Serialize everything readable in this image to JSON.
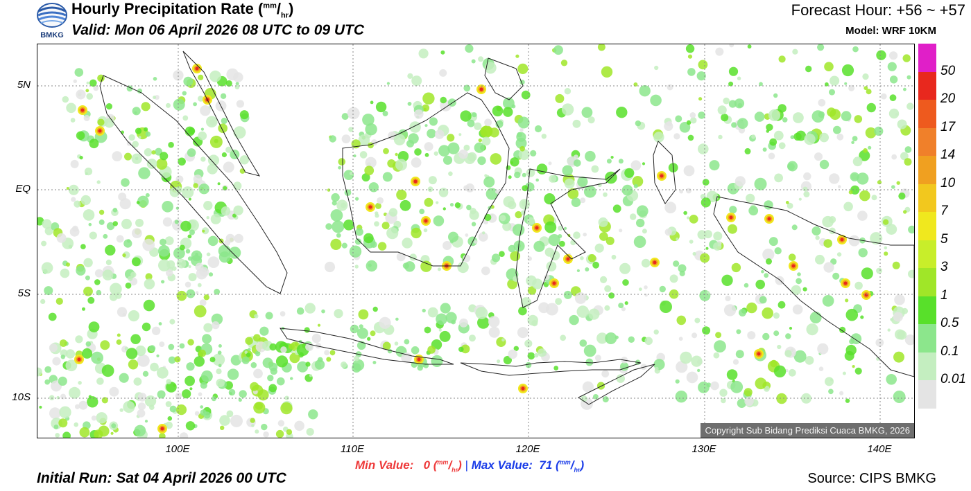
{
  "header": {
    "title": "Hourly Precipitation Rate",
    "unit_num": "mm",
    "unit_den": "hr",
    "valid": "Valid: Mon 06 April 2026 08 UTC to 09 UTC",
    "forecast_hour": "Forecast Hour: +56 ~ +57",
    "model": "Model: WRF 10KM",
    "logo_text": "BMKG"
  },
  "map": {
    "lat_labels": [
      "5N",
      "EQ",
      "5S",
      "10S"
    ],
    "lon_labels": [
      "100E",
      "110E",
      "120E",
      "130E",
      "140E"
    ],
    "copyright": "Copyright Sub Bidang Prediksi Cuaca BMKG, 2026"
  },
  "legend": {
    "labels": [
      "50",
      "20",
      "17",
      "14",
      "10",
      "7",
      "5",
      "3",
      "1",
      "0.5",
      "0.1",
      "0.01"
    ],
    "colors": [
      "#e01fc8",
      "#e8281e",
      "#ee5a1e",
      "#f0802a",
      "#f0a020",
      "#f2c81e",
      "#f0e81e",
      "#c8ee2a",
      "#a0e628",
      "#58e02a",
      "#8ce68c",
      "#c4eec0",
      "#e4e4e4"
    ]
  },
  "stats": {
    "min_label": "Min Value:",
    "min_value": "0",
    "separator": "|",
    "max_label": "Max Value:",
    "max_value": "71",
    "unit_num": "mm",
    "unit_den": "hr"
  },
  "footer": {
    "initial_run": "Initial Run: Sat 04 April 2026 00 UTC",
    "source": "Source: CIPS BMKG"
  }
}
